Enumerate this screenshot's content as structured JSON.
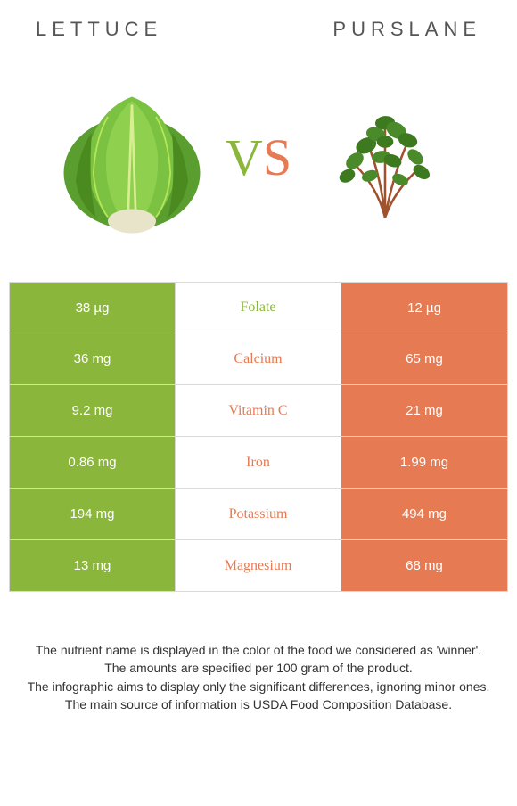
{
  "header": {
    "left_title": "LETTUCE",
    "right_title": "PURSLANE"
  },
  "vs": {
    "v": "V",
    "s": "S"
  },
  "colors": {
    "left_bg": "#8bb63c",
    "right_bg": "#e67a52",
    "green_text": "#8bb63c",
    "orange_text": "#e67a52",
    "border": "#d9d9d9",
    "footer_text": "#333333"
  },
  "table": {
    "rows": [
      {
        "left": "38 µg",
        "name": "Folate",
        "right": "12 µg",
        "winner": "left"
      },
      {
        "left": "36 mg",
        "name": "Calcium",
        "right": "65 mg",
        "winner": "right"
      },
      {
        "left": "9.2 mg",
        "name": "Vitamin C",
        "right": "21 mg",
        "winner": "right"
      },
      {
        "left": "0.86 mg",
        "name": "Iron",
        "right": "1.99 mg",
        "winner": "right"
      },
      {
        "left": "194 mg",
        "name": "Potassium",
        "right": "494 mg",
        "winner": "right"
      },
      {
        "left": "13 mg",
        "name": "Magnesium",
        "right": "68 mg",
        "winner": "right"
      }
    ]
  },
  "footer": {
    "line1": "The nutrient name is displayed in the color of the food we considered as 'winner'.",
    "line2": "The amounts are specified per 100 gram of the product.",
    "line3": "The infographic aims to display only the significant differences, ignoring minor ones.",
    "line4": "The main source of information is USDA Food Composition Database."
  }
}
